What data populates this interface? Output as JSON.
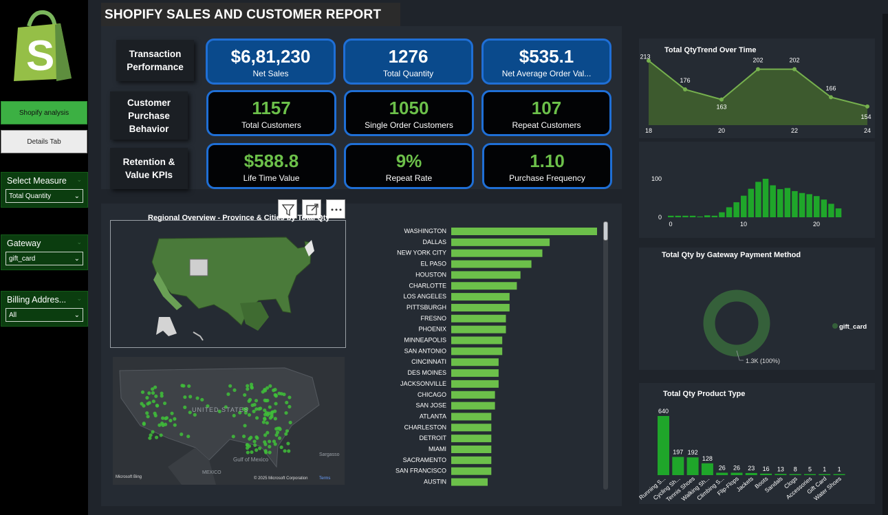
{
  "title": "SHOPIFY  SALES AND CUSTOMER REPORT",
  "colors": {
    "accent_green": "#6cc04a",
    "bar_green": "#1fa62a",
    "card_blue": "#0a4a8c",
    "border_blue": "#1f6fd6"
  },
  "sidebar": {
    "logo": "shopify-bag-icon",
    "nav": [
      {
        "label": "Shopify analysis",
        "active": true
      },
      {
        "label": "Details Tab",
        "active": false
      }
    ],
    "slicers": [
      {
        "title": "Select Measure",
        "value": "Total Quantity"
      },
      {
        "title": "Gateway",
        "value": "gift_card"
      },
      {
        "title": "Billing Addres...",
        "value": "All"
      }
    ]
  },
  "kpi": {
    "rows": [
      {
        "label": "Transaction Performance",
        "cards": [
          {
            "value": "$6,81,230",
            "label": "Net Sales"
          },
          {
            "value": "1276",
            "label": "Total Quantity"
          },
          {
            "value": "$535.1",
            "label": "Net Average Order Val..."
          }
        ]
      },
      {
        "label": "Customer Purchase Behavior",
        "cards": [
          {
            "value": "1157",
            "label": "Total Customers"
          },
          {
            "value": "1050",
            "label": "Single Order Customers"
          },
          {
            "value": "107",
            "label": "Repeat Customers"
          }
        ]
      },
      {
        "label": "Retention & Value KPIs",
        "cards": [
          {
            "value": "$588.8",
            "label": "Life Time Value"
          },
          {
            "value": "9%",
            "label": "Repeat Rate"
          },
          {
            "value": "1.10",
            "label": "Purchase Frequency"
          }
        ]
      }
    ]
  },
  "map": {
    "title": "Regional Overview - Province & Cities by Total Qty",
    "toolbar": [
      "filter-icon",
      "focus-mode-icon",
      "more-options-icon"
    ],
    "dark_map_labels": {
      "country": "UNITED STATES",
      "gulf": "Gulf of Mexico",
      "mexico": "MEXICO",
      "sargasso": "Sargasso",
      "bing": "Microsoft Bing",
      "copyright": "© 2025 Microsoft Corporation",
      "terms": "Terms"
    }
  },
  "chart_data": [
    {
      "type": "bar",
      "orientation": "horizontal",
      "categories": [
        "WASHINGTON",
        "DALLAS",
        "NEW YORK CITY",
        "EL PASO",
        "HOUSTON",
        "CHARLOTTE",
        "LOS ANGELES",
        "PITTSBURGH",
        "FRESNO",
        "PHOENIX",
        "MINNEAPOLIS",
        "SAN ANTONIO",
        "CINCINNATI",
        "DES MOINES",
        "JACKSONVILLE",
        "CHICAGO",
        "SAN JOSE",
        "ATLANTA",
        "CHARLESTON",
        "DETROIT",
        "MIAMI",
        "SACRAMENTO",
        "SAN FRANCISCO",
        "AUSTIN"
      ],
      "values": [
        40,
        27,
        25,
        22,
        19,
        18,
        16,
        16,
        15,
        15,
        14,
        14,
        13,
        13,
        13,
        12,
        12,
        11,
        11,
        11,
        11,
        11,
        11,
        10
      ]
    },
    {
      "type": "area",
      "title": "Total QtyTrend Over Time",
      "x": [
        18,
        19,
        20,
        21,
        22,
        23,
        24
      ],
      "values": [
        213,
        176,
        163,
        202,
        202,
        166,
        154
      ],
      "xticks": [
        "18",
        "20",
        "22",
        "24"
      ]
    },
    {
      "type": "bar",
      "x": [
        0,
        1,
        2,
        3,
        4,
        5,
        6,
        7,
        8,
        9,
        10,
        11,
        12,
        13,
        14,
        15,
        16,
        17,
        18,
        19,
        20,
        21,
        22,
        23
      ],
      "values": [
        4,
        4,
        4,
        4,
        2,
        5,
        4,
        13,
        26,
        39,
        56,
        74,
        92,
        100,
        83,
        73,
        76,
        68,
        63,
        60,
        55,
        46,
        35,
        23
      ],
      "yticks": [
        "0",
        "100"
      ],
      "xticks": [
        "0",
        "10",
        "20"
      ]
    },
    {
      "type": "pie",
      "title": "Total Qty by Gateway Payment Method",
      "categories": [
        "gift_card"
      ],
      "values": [
        1276
      ],
      "data_label": "1.3K (100%)"
    },
    {
      "type": "bar",
      "title": "Total Qty Product Type",
      "categories": [
        "Running S...",
        "Cycling Sh...",
        "Tennis Shoes",
        "Walking Sh...",
        "Climbing S...",
        "Flip-Flops",
        "Jackets",
        "Boots",
        "Sandals",
        "Clogs",
        "Accessories",
        "Gift Card",
        "Water Shoes"
      ],
      "values": [
        640,
        197,
        192,
        128,
        26,
        26,
        23,
        16,
        13,
        8,
        5,
        1,
        1
      ]
    }
  ]
}
